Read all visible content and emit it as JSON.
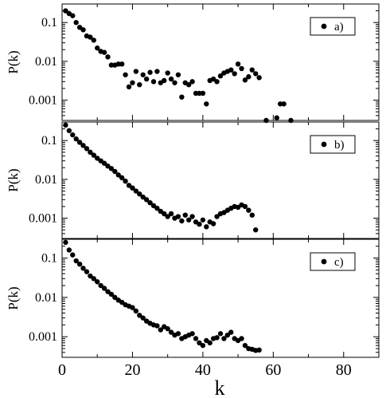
{
  "chart_data": [
    {
      "type": "scatter",
      "panel_label": "a)",
      "ylabel": "P(k)",
      "yscale": "log",
      "ylim": [
        0.0003,
        0.3
      ],
      "xlim": [
        0,
        90
      ],
      "y_ticks": [
        0.001,
        0.01,
        0.1
      ],
      "y_tick_labels": [
        "0.001",
        "0.01",
        "0.1"
      ],
      "legend": "top-right",
      "marker_color": "#000000",
      "series": [
        {
          "x": [
            1,
            2,
            3,
            4,
            5,
            6,
            7,
            8,
            9,
            10,
            11,
            12,
            13,
            14,
            15,
            16,
            17,
            18,
            19,
            20,
            21,
            22,
            23,
            24,
            25,
            26,
            27,
            28,
            29,
            30,
            31,
            32,
            33,
            34,
            35,
            36,
            37,
            38,
            39,
            40,
            41,
            42,
            43,
            44,
            45,
            46,
            47,
            48,
            49,
            50,
            51,
            52,
            53,
            54,
            55,
            56,
            58,
            61,
            62,
            63,
            65
          ],
          "y": [
            0.2,
            0.17,
            0.15,
            0.1,
            0.075,
            0.065,
            0.045,
            0.042,
            0.035,
            0.022,
            0.018,
            0.017,
            0.013,
            0.008,
            0.008,
            0.0085,
            0.0085,
            0.0045,
            0.0022,
            0.0028,
            0.0055,
            0.0025,
            0.0045,
            0.0035,
            0.0052,
            0.003,
            0.0055,
            0.0028,
            0.0032,
            0.005,
            0.0035,
            0.0028,
            0.0045,
            0.0012,
            0.0028,
            0.0025,
            0.003,
            0.0015,
            0.0015,
            0.0015,
            0.0008,
            0.0032,
            0.0035,
            0.003,
            0.0042,
            0.005,
            0.0055,
            0.006,
            0.0048,
            0.0085,
            0.0065,
            0.0033,
            0.004,
            0.006,
            0.0048,
            0.0038,
            0.0003,
            0.00035,
            0.0008,
            0.0008,
            0.0003
          ]
        }
      ]
    },
    {
      "type": "scatter",
      "panel_label": "b)",
      "ylabel": "P(k)",
      "yscale": "log",
      "ylim": [
        0.0003,
        0.3
      ],
      "xlim": [
        0,
        90
      ],
      "y_ticks": [
        0.001,
        0.01,
        0.1
      ],
      "y_tick_labels": [
        "0.001",
        "0.01",
        "0.1"
      ],
      "legend": "top-right",
      "marker_color": "#000000",
      "series": [
        {
          "x": [
            1,
            2,
            3,
            4,
            5,
            6,
            7,
            8,
            9,
            10,
            11,
            12,
            13,
            14,
            15,
            16,
            17,
            18,
            19,
            20,
            21,
            22,
            23,
            24,
            25,
            26,
            27,
            28,
            29,
            30,
            31,
            32,
            33,
            34,
            35,
            36,
            37,
            38,
            39,
            40,
            41,
            42,
            43,
            44,
            45,
            46,
            47,
            48,
            49,
            50,
            51,
            52,
            53,
            54,
            55
          ],
          "y": [
            0.25,
            0.18,
            0.14,
            0.11,
            0.09,
            0.075,
            0.062,
            0.05,
            0.042,
            0.035,
            0.03,
            0.026,
            0.022,
            0.019,
            0.016,
            0.013,
            0.011,
            0.009,
            0.007,
            0.006,
            0.005,
            0.0042,
            0.0035,
            0.003,
            0.0025,
            0.0021,
            0.0018,
            0.0015,
            0.0013,
            0.0011,
            0.0013,
            0.001,
            0.0011,
            0.00085,
            0.0012,
            0.0009,
            0.0011,
            0.0008,
            0.0007,
            0.0009,
            0.0006,
            0.0008,
            0.00072,
            0.0011,
            0.0013,
            0.0014,
            0.0016,
            0.0018,
            0.002,
            0.0019,
            0.0022,
            0.002,
            0.0016,
            0.0012,
            0.0005
          ]
        }
      ]
    },
    {
      "type": "scatter",
      "panel_label": "c)",
      "ylabel": "P(k)",
      "yscale": "log",
      "ylim": [
        0.0003,
        0.3
      ],
      "xlim": [
        0,
        90
      ],
      "y_ticks": [
        0.001,
        0.01,
        0.1
      ],
      "y_tick_labels": [
        "0.001",
        "0.01",
        "0.1"
      ],
      "xlabel": "k",
      "x_ticks": [
        0,
        20,
        40,
        60,
        80
      ],
      "x_tick_labels": [
        "0",
        "20",
        "40",
        "60",
        "80"
      ],
      "legend": "top-right",
      "marker_color": "#000000",
      "series": [
        {
          "x": [
            1,
            2,
            3,
            4,
            5,
            6,
            7,
            8,
            9,
            10,
            11,
            12,
            13,
            14,
            15,
            16,
            17,
            18,
            19,
            20,
            21,
            22,
            23,
            24,
            25,
            26,
            27,
            28,
            29,
            30,
            31,
            32,
            33,
            34,
            35,
            36,
            37,
            38,
            39,
            40,
            41,
            42,
            43,
            44,
            45,
            46,
            47,
            48,
            49,
            50,
            51,
            52,
            53,
            54,
            55,
            56
          ],
          "y": [
            0.25,
            0.16,
            0.12,
            0.085,
            0.07,
            0.055,
            0.045,
            0.035,
            0.03,
            0.025,
            0.02,
            0.017,
            0.014,
            0.012,
            0.01,
            0.0085,
            0.0075,
            0.0065,
            0.006,
            0.0055,
            0.0045,
            0.0035,
            0.003,
            0.0025,
            0.0022,
            0.002,
            0.0019,
            0.0015,
            0.0018,
            0.0016,
            0.0013,
            0.0011,
            0.0012,
            0.0009,
            0.001,
            0.0011,
            0.0012,
            0.0009,
            0.0007,
            0.0006,
            0.0008,
            0.0007,
            0.0009,
            0.00095,
            0.0012,
            0.0009,
            0.0011,
            0.0013,
            0.0009,
            0.0008,
            0.0009,
            0.0006,
            0.0005,
            0.00048,
            0.00045,
            0.00046
          ]
        }
      ]
    }
  ]
}
